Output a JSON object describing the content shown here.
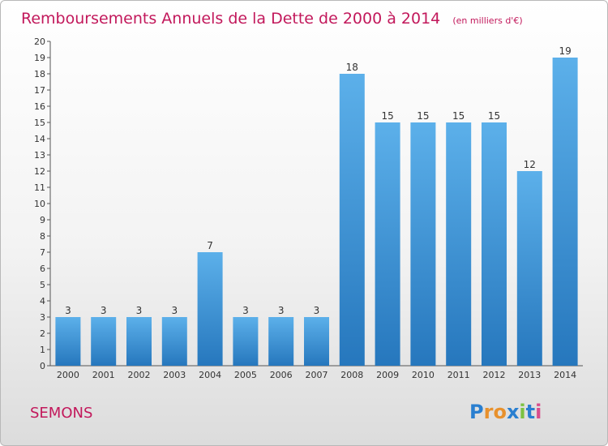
{
  "chart_data": {
    "type": "bar",
    "title": "Remboursements Annuels de la Dette de 2000 à 2014",
    "subtitle": "(en milliers d'€)",
    "categories": [
      "2000",
      "2001",
      "2002",
      "2003",
      "2004",
      "2005",
      "2006",
      "2007",
      "2008",
      "2009",
      "2010",
      "2011",
      "2012",
      "2013",
      "2014"
    ],
    "values": [
      3,
      3,
      3,
      3,
      7,
      3,
      3,
      3,
      18,
      15,
      15,
      15,
      15,
      12,
      19
    ],
    "ylim": [
      0,
      20
    ],
    "yticks": [
      0,
      1,
      2,
      3,
      4,
      5,
      6,
      7,
      8,
      9,
      10,
      11,
      12,
      13,
      14,
      15,
      16,
      17,
      18,
      19,
      20
    ],
    "grid": false,
    "bar_color": "#3d95d9"
  },
  "commune": "SEMONS",
  "logo": {
    "letters": [
      "P",
      "r",
      "o",
      "x",
      "i",
      "t",
      "i"
    ],
    "colors": [
      "#2a7fd0",
      "#e8912d",
      "#e8912d",
      "#2a7fd0",
      "#7cc242",
      "#2a7fd0",
      "#d94d8c"
    ]
  }
}
